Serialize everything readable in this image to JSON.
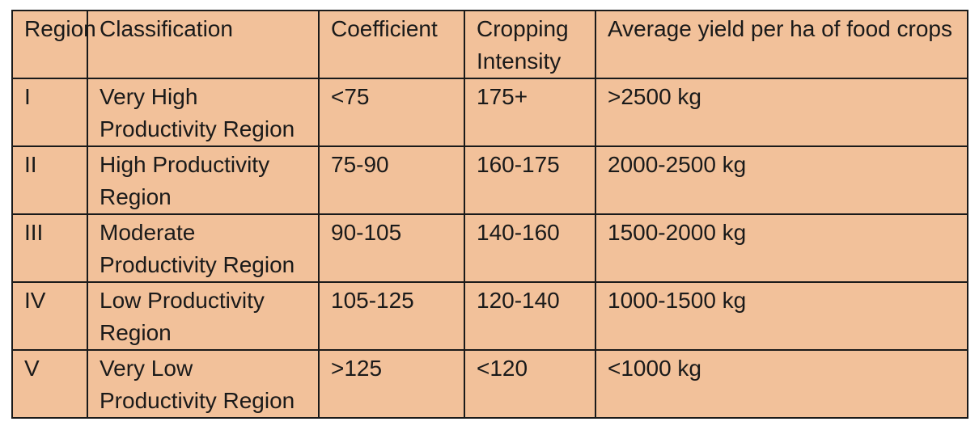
{
  "table": {
    "headers": [
      "Region",
      "Classification",
      "Coefficient",
      "Cropping Intensity",
      "Average yield per ha of food crops"
    ],
    "rows": [
      {
        "region": "I",
        "classification": "Very High Productivity Region",
        "coefficient": "<75",
        "cropping_intensity": "175+",
        "average_yield": ">2500 kg"
      },
      {
        "region": "II",
        "classification": "High Productivity Region",
        "coefficient": "75-90",
        "cropping_intensity": "160-175",
        "average_yield": "2000-2500 kg"
      },
      {
        "region": "III",
        "classification": "Moderate Productivity Region",
        "coefficient": "90-105",
        "cropping_intensity": "140-160",
        "average_yield": "1500-2000 kg"
      },
      {
        "region": "IV",
        "classification": "Low Productivity Region",
        "coefficient": "105-125",
        "cropping_intensity": "120-140",
        "average_yield": "1000-1500 kg"
      },
      {
        "region": "V",
        "classification": "Very Low Productivity Region",
        "coefficient": ">125",
        "cropping_intensity": "<120",
        "average_yield": "<1000 kg"
      }
    ]
  },
  "colors": {
    "cell_background": "#f2c19a",
    "border": "#1a1a1a",
    "text": "#1a1a1a"
  }
}
